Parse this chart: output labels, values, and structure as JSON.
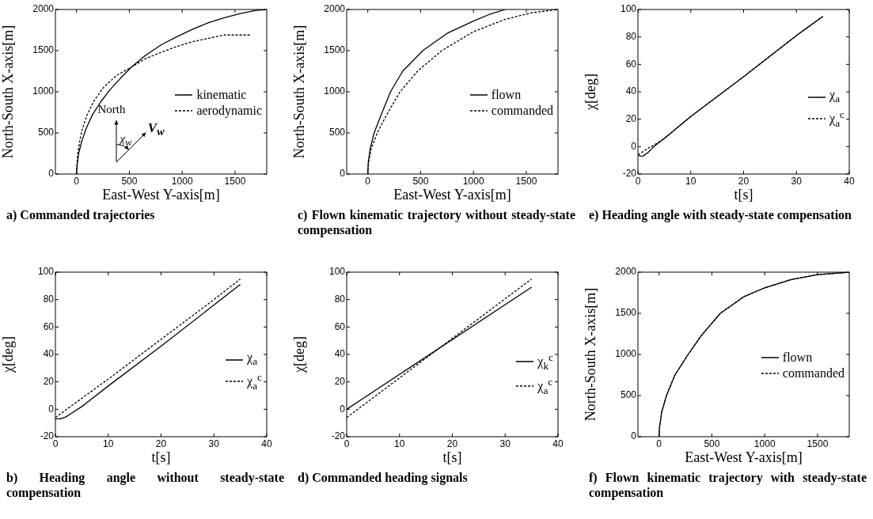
{
  "chart_data": [
    {
      "type": "line",
      "title": "a) Commanded trajectories",
      "xlabel": "East-West Y-axis[m]",
      "ylabel": "North-South X-axis[m]",
      "xlim": [
        -200,
        1800
      ],
      "ylim": [
        0,
        2000
      ],
      "xticks": [
        0,
        500,
        1000,
        1500
      ],
      "yticks": [
        0,
        500,
        1000,
        1500,
        2000
      ],
      "legend": "right",
      "annotations": [
        "North",
        "V$_{w}$",
        "χ$_{w}$"
      ],
      "series": [
        {
          "name": "kinematic",
          "color": "#000000",
          "line_style": "solid",
          "x": [
            0,
            5,
            20,
            50,
            90,
            150,
            230,
            320,
            420,
            520,
            650,
            800,
            950,
            1100,
            1250,
            1400,
            1550,
            1700,
            1800
          ],
          "values": [
            0,
            100,
            250,
            400,
            550,
            720,
            880,
            1030,
            1170,
            1300,
            1440,
            1570,
            1670,
            1760,
            1840,
            1900,
            1950,
            1990,
            2000
          ]
        },
        {
          "name": "aerodynamic",
          "color": "#000000",
          "line_style": "dashed",
          "x": [
            0,
            3,
            12,
            30,
            55,
            100,
            170,
            260,
            380,
            520,
            650,
            800,
            950,
            1100,
            1250,
            1400,
            1500,
            1640
          ],
          "values": [
            0,
            100,
            250,
            400,
            550,
            720,
            900,
            1060,
            1200,
            1300,
            1400,
            1480,
            1550,
            1610,
            1650,
            1690,
            1690,
            1690
          ]
        }
      ]
    },
    {
      "type": "line",
      "title": "c) Flown kinematic trajectory without steady-state compensation",
      "xlabel": "East-West Y-axis[m]",
      "ylabel": "North-South X-axis[m]",
      "xlim": [
        -200,
        1800
      ],
      "ylim": [
        0,
        2000
      ],
      "xticks": [
        0,
        500,
        1000,
        1500
      ],
      "yticks": [
        0,
        500,
        1000,
        1500,
        2000
      ],
      "legend": "right",
      "series": [
        {
          "name": "flown",
          "color": "#000000",
          "line_style": "solid",
          "x": [
            0,
            5,
            25,
            60,
            120,
            215,
            330,
            520,
            750,
            1000,
            1150,
            1300
          ],
          "values": [
            0,
            150,
            320,
            500,
            700,
            1000,
            1250,
            1500,
            1710,
            1860,
            1940,
            2000
          ]
        },
        {
          "name": "commanded",
          "color": "#000000",
          "line_style": "dashed",
          "x": [
            0,
            5,
            30,
            90,
            170,
            305,
            470,
            700,
            1000,
            1300,
            1550,
            1800
          ],
          "values": [
            0,
            120,
            300,
            500,
            700,
            1000,
            1250,
            1500,
            1730,
            1880,
            1960,
            2000
          ]
        }
      ]
    },
    {
      "type": "line",
      "title": "e) Heading angle with steady-state compensation",
      "xlabel": "t[s]",
      "ylabel": "χ[deg]",
      "xlim": [
        0,
        40
      ],
      "ylim": [
        -20,
        100
      ],
      "xticks": [
        0,
        10,
        20,
        30,
        40
      ],
      "yticks": [
        -20,
        0,
        20,
        40,
        60,
        80,
        100
      ],
      "legend": "right",
      "series": [
        {
          "name": "χ$_{a}$",
          "color": "#000000",
          "line_style": "solid",
          "x": [
            0,
            0.5,
            1,
            2,
            3,
            5,
            10,
            20,
            30,
            35
          ],
          "values": [
            -6,
            -7,
            -6.8,
            -4,
            0,
            6,
            22,
            51,
            81,
            95
          ]
        },
        {
          "name": "χ$_{a}$$^{c}$",
          "color": "#000000",
          "line_style": "dashed",
          "x": [
            0,
            1,
            2,
            3,
            5,
            10,
            20,
            30,
            35
          ],
          "values": [
            -6,
            -3.5,
            -1,
            1,
            6,
            22,
            51,
            81,
            95
          ]
        }
      ]
    },
    {
      "type": "line",
      "title": "b) Heading angle without steady-state compensation",
      "xlabel": "t[s]",
      "ylabel": "χ[deg]",
      "xlim": [
        0,
        40
      ],
      "ylim": [
        -20,
        100
      ],
      "xticks": [
        0,
        10,
        20,
        30,
        40
      ],
      "yticks": [
        -20,
        0,
        20,
        40,
        60,
        80,
        100
      ],
      "legend": "right",
      "series": [
        {
          "name": "χ$_{a}$",
          "color": "#000000",
          "line_style": "solid",
          "x": [
            0,
            1,
            2,
            3,
            5,
            10,
            20,
            30,
            35
          ],
          "values": [
            -7,
            -7,
            -5.5,
            -3,
            2,
            17,
            46,
            76,
            91
          ]
        },
        {
          "name": "χ$_{a}$$^{c}$",
          "color": "#000000",
          "line_style": "dashed",
          "x": [
            0,
            5,
            10,
            20,
            30,
            35
          ],
          "values": [
            -6,
            8,
            22,
            51,
            80,
            95
          ]
        }
      ]
    },
    {
      "type": "line",
      "title": "d) Commanded heading signals",
      "xlabel": "t[s]",
      "ylabel": "χ[deg]",
      "xlim": [
        0,
        40
      ],
      "ylim": [
        -20,
        100
      ],
      "xticks": [
        0,
        10,
        20,
        30,
        40
      ],
      "yticks": [
        -20,
        0,
        20,
        40,
        60,
        80,
        100
      ],
      "legend": "right",
      "series": [
        {
          "name": "χ$_{k}$$^{c}$",
          "color": "#000000",
          "line_style": "solid",
          "x": [
            0,
            35
          ],
          "values": [
            0,
            89
          ]
        },
        {
          "name": "χ$_{a}$$^{c}$",
          "color": "#000000",
          "line_style": "dashed",
          "x": [
            0,
            35
          ],
          "values": [
            -6,
            95
          ]
        }
      ]
    },
    {
      "type": "line",
      "title": "f) Flown kinematic trajectory with steady-state compensation",
      "xlabel": "East-West Y-axis[m]",
      "ylabel": "North-South X-axis[m]",
      "xlim": [
        -200,
        1800
      ],
      "ylim": [
        0,
        2000
      ],
      "xticks": [
        0,
        500,
        1000,
        1500
      ],
      "yticks": [
        0,
        500,
        1000,
        1500,
        2000
      ],
      "legend": "right",
      "series": [
        {
          "name": "flown",
          "color": "#000000",
          "line_style": "solid",
          "x": [
            0,
            5,
            25,
            70,
            150,
            275,
            400,
            580,
            800,
            1000,
            1250,
            1500,
            1800
          ],
          "values": [
            0,
            120,
            300,
            500,
            750,
            1000,
            1230,
            1500,
            1700,
            1810,
            1910,
            1970,
            2000
          ]
        },
        {
          "name": "commanded",
          "color": "#000000",
          "line_style": "dashed",
          "x": [
            0,
            5,
            25,
            70,
            150,
            275,
            400,
            580,
            800,
            1000,
            1250,
            1500,
            1800
          ],
          "values": [
            0,
            120,
            300,
            500,
            750,
            1000,
            1230,
            1500,
            1700,
            1810,
            1910,
            1970,
            2000
          ]
        }
      ]
    }
  ]
}
